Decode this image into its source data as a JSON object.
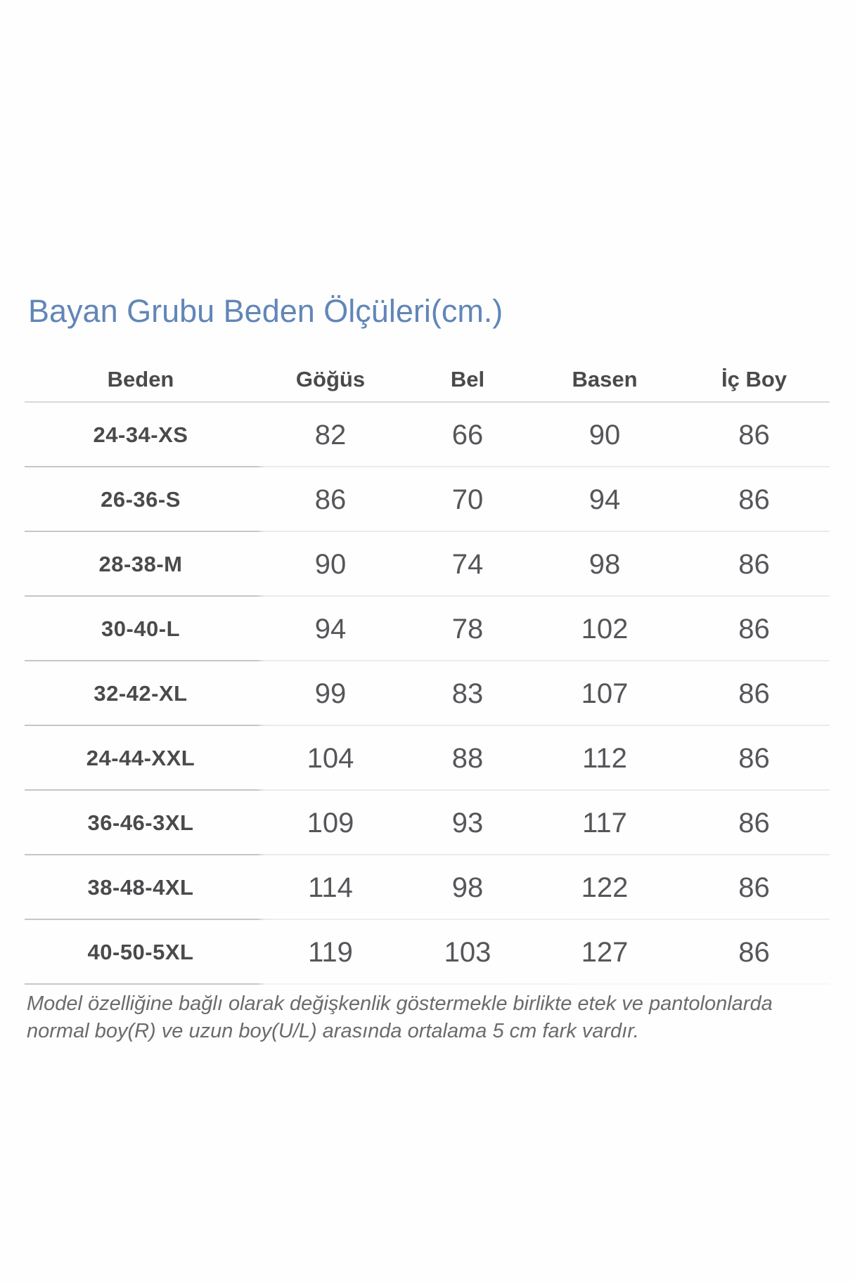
{
  "title": "Bayan Grubu Beden Ölçüleri(cm.)",
  "colors": {
    "title_blue": "#6186b8",
    "header_text": "#4a4a4c",
    "number_text": "#56565a",
    "divider_dark": "#c6c6c8",
    "divider_light": "#ececec",
    "footnote_text": "#6b6b6b"
  },
  "table": {
    "headers": [
      "Beden",
      "Göğüs",
      "Bel",
      "Basen",
      "İç Boy"
    ],
    "rows": [
      {
        "size": "24-34-XS",
        "values": [
          "82",
          "66",
          "90",
          "86"
        ]
      },
      {
        "size": "26-36-S",
        "values": [
          "86",
          "70",
          "94",
          "86"
        ]
      },
      {
        "size": "28-38-M",
        "values": [
          "90",
          "74",
          "98",
          "86"
        ]
      },
      {
        "size": "30-40-L",
        "values": [
          "94",
          "78",
          "102",
          "86"
        ]
      },
      {
        "size": "32-42-XL",
        "values": [
          "99",
          "83",
          "107",
          "86"
        ]
      },
      {
        "size": "24-44-XXL",
        "values": [
          "104",
          "88",
          "112",
          "86"
        ]
      },
      {
        "size": "36-46-3XL",
        "values": [
          "109",
          "93",
          "117",
          "86"
        ]
      },
      {
        "size": "38-48-4XL",
        "values": [
          "114",
          "98",
          "122",
          "86"
        ]
      },
      {
        "size": "40-50-5XL",
        "values": [
          "119",
          "103",
          "127",
          "86"
        ]
      }
    ]
  },
  "footnote": {
    "line1": "Model özelliğine bağlı olarak değişkenlik göstermekle birlikte etek ve pantolonlarda",
    "line2": "normal boy(R) ve uzun boy(U/L) arasında ortalama 5 cm fark vardır."
  }
}
